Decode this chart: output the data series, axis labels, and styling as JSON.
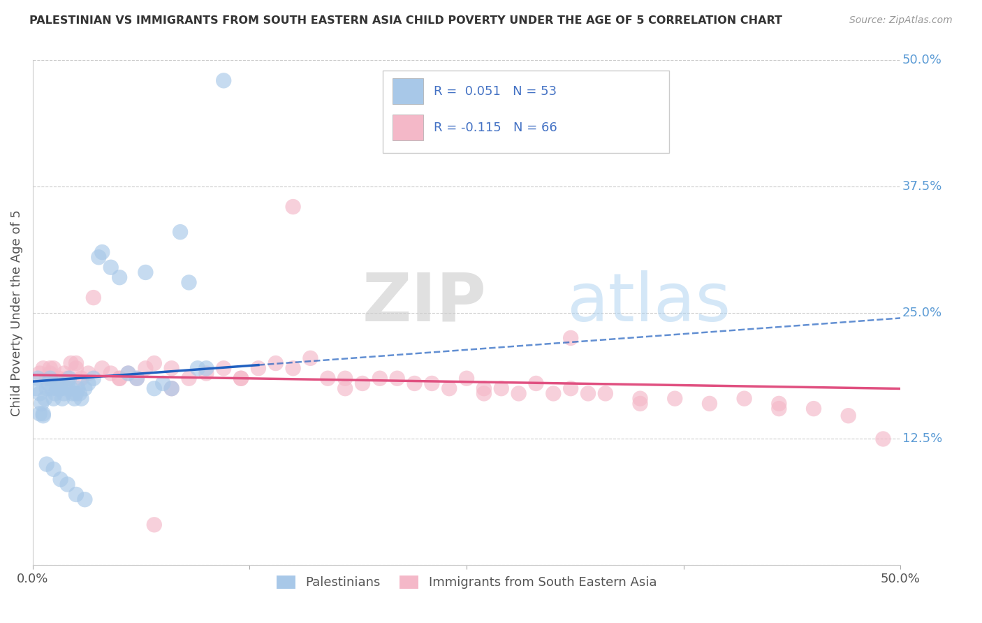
{
  "title": "PALESTINIAN VS IMMIGRANTS FROM SOUTH EASTERN ASIA CHILD POVERTY UNDER THE AGE OF 5 CORRELATION CHART",
  "source": "Source: ZipAtlas.com",
  "ylabel": "Child Poverty Under the Age of 5",
  "right_yticks": [
    0.0,
    0.125,
    0.25,
    0.375,
    0.5
  ],
  "right_yticklabels": [
    "",
    "12.5%",
    "25.0%",
    "37.5%",
    "50.0%"
  ],
  "xlim": [
    0.0,
    0.5
  ],
  "ylim": [
    0.0,
    0.5
  ],
  "color_blue": "#a8c8e8",
  "color_pink": "#f4b8c8",
  "line_blue": "#2060c0",
  "line_pink": "#e05080",
  "watermark_zip": "ZIP",
  "watermark_atlas": "atlas",
  "blue_R": 0.051,
  "blue_N": 53,
  "pink_R": -0.115,
  "pink_N": 66,
  "blue_scatter_x": [
    0.002,
    0.003,
    0.004,
    0.005,
    0.006,
    0.007,
    0.008,
    0.009,
    0.01,
    0.011,
    0.012,
    0.013,
    0.014,
    0.015,
    0.016,
    0.017,
    0.018,
    0.019,
    0.02,
    0.021,
    0.022,
    0.023,
    0.024,
    0.025,
    0.026,
    0.027,
    0.028,
    0.03,
    0.032,
    0.035,
    0.038,
    0.04,
    0.045,
    0.05,
    0.055,
    0.06,
    0.065,
    0.07,
    0.075,
    0.08,
    0.085,
    0.09,
    0.095,
    0.1,
    0.004,
    0.006,
    0.008,
    0.012,
    0.016,
    0.02,
    0.025,
    0.03,
    0.11
  ],
  "blue_scatter_y": [
    0.175,
    0.185,
    0.17,
    0.16,
    0.15,
    0.165,
    0.175,
    0.18,
    0.185,
    0.175,
    0.165,
    0.17,
    0.175,
    0.18,
    0.175,
    0.165,
    0.17,
    0.175,
    0.18,
    0.185,
    0.175,
    0.17,
    0.165,
    0.17,
    0.175,
    0.17,
    0.165,
    0.175,
    0.18,
    0.185,
    0.305,
    0.31,
    0.295,
    0.285,
    0.19,
    0.185,
    0.29,
    0.175,
    0.18,
    0.175,
    0.33,
    0.28,
    0.195,
    0.195,
    0.15,
    0.148,
    0.1,
    0.095,
    0.085,
    0.08,
    0.07,
    0.065,
    0.48
  ],
  "pink_scatter_x": [
    0.004,
    0.006,
    0.008,
    0.01,
    0.012,
    0.015,
    0.018,
    0.02,
    0.022,
    0.025,
    0.028,
    0.032,
    0.035,
    0.04,
    0.045,
    0.05,
    0.055,
    0.06,
    0.065,
    0.07,
    0.08,
    0.09,
    0.1,
    0.11,
    0.12,
    0.13,
    0.14,
    0.15,
    0.16,
    0.17,
    0.18,
    0.19,
    0.2,
    0.21,
    0.22,
    0.23,
    0.24,
    0.25,
    0.26,
    0.27,
    0.28,
    0.29,
    0.3,
    0.31,
    0.32,
    0.33,
    0.35,
    0.37,
    0.39,
    0.41,
    0.43,
    0.45,
    0.47,
    0.49,
    0.01,
    0.025,
    0.05,
    0.08,
    0.12,
    0.18,
    0.26,
    0.35,
    0.43,
    0.07,
    0.15,
    0.31
  ],
  "pink_scatter_y": [
    0.19,
    0.195,
    0.185,
    0.19,
    0.195,
    0.185,
    0.19,
    0.185,
    0.2,
    0.195,
    0.185,
    0.19,
    0.265,
    0.195,
    0.19,
    0.185,
    0.19,
    0.185,
    0.195,
    0.2,
    0.195,
    0.185,
    0.19,
    0.195,
    0.185,
    0.195,
    0.2,
    0.195,
    0.205,
    0.185,
    0.185,
    0.18,
    0.185,
    0.185,
    0.18,
    0.18,
    0.175,
    0.185,
    0.175,
    0.175,
    0.17,
    0.18,
    0.17,
    0.175,
    0.17,
    0.17,
    0.165,
    0.165,
    0.16,
    0.165,
    0.16,
    0.155,
    0.148,
    0.125,
    0.195,
    0.2,
    0.185,
    0.175,
    0.185,
    0.175,
    0.17,
    0.16,
    0.155,
    0.04,
    0.355,
    0.225
  ],
  "legend_label_blue": "Palestinians",
  "legend_label_pink": "Immigrants from South Eastern Asia",
  "blue_line_solid_end": 0.13,
  "pink_line_x0": 0.0,
  "pink_line_x1": 0.5
}
